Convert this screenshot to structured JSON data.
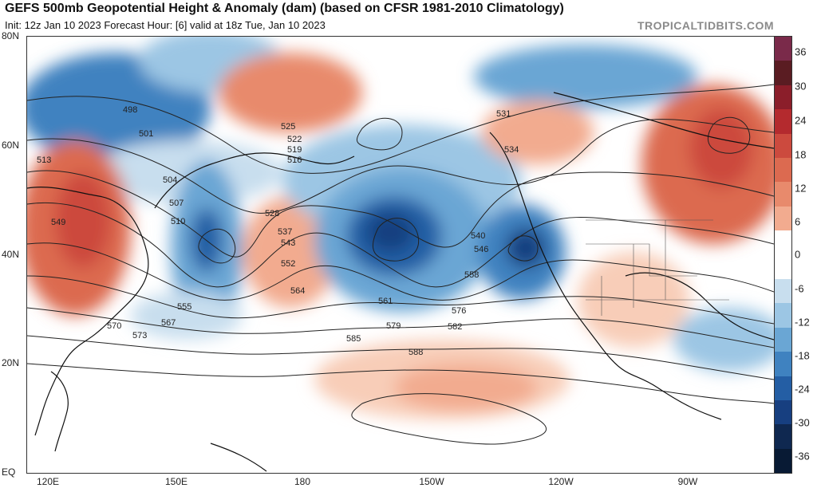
{
  "header": {
    "title": "GEFS 500mb Geopotential Height & Anomaly (dam) (based on CFSR 1981-2010 Climatology)",
    "subtitle": "Init: 12z Jan 10 2023   Forecast Hour: [6]   valid at 18z Tue, Jan 10 2023",
    "source": "TROPICALTIDBITS.COM"
  },
  "axes": {
    "latitudes": [
      "80N",
      "60N",
      "40N",
      "20N",
      "EQ"
    ],
    "longitudes": [
      "120E",
      "150E",
      "180",
      "150W",
      "120W",
      "90W"
    ]
  },
  "colorbar": {
    "labels": [
      "36",
      "30",
      "24",
      "18",
      "12",
      "6",
      "0",
      "-6",
      "-12",
      "-18",
      "-24",
      "-30",
      "-36"
    ],
    "colors": [
      "#7a2a4a",
      "#8b1e2a",
      "#b42a2e",
      "#cc4a3e",
      "#dc6a50",
      "#e88a6c",
      "#f2ab8f",
      "#f8cdb8",
      "#ffffff",
      "#ffffff",
      "#c8deee",
      "#9cc6e4",
      "#6aa6d4",
      "#3f82c0",
      "#245ea4",
      "#173f80",
      "#0f2850",
      "#081a34"
    ]
  },
  "contour_labels": [
    "498",
    "501",
    "504",
    "507",
    "510",
    "513",
    "516",
    "519",
    "522",
    "525",
    "528",
    "531",
    "534",
    "537",
    "540",
    "543",
    "546",
    "549",
    "552",
    "555",
    "558",
    "561",
    "564",
    "567",
    "570",
    "573",
    "576",
    "579",
    "582",
    "585",
    "588"
  ]
}
